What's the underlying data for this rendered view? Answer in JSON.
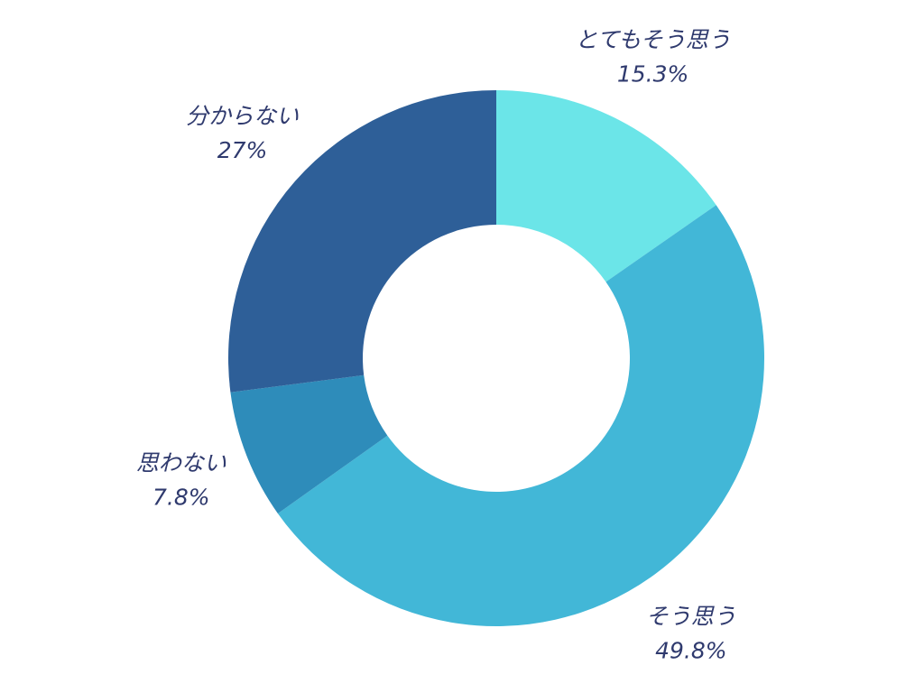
{
  "chart_data": {
    "type": "donut",
    "categories": [
      "とてもそう思う",
      "そう思う",
      "思わない",
      "分からない"
    ],
    "values": [
      15.3,
      49.8,
      7.8,
      27
    ],
    "value_labels": [
      "15.3%",
      "49.8%",
      "7.8%",
      "27%"
    ],
    "colors": [
      "#6be5e8",
      "#42b7d7",
      "#2e8cba",
      "#2e5f98"
    ]
  }
}
